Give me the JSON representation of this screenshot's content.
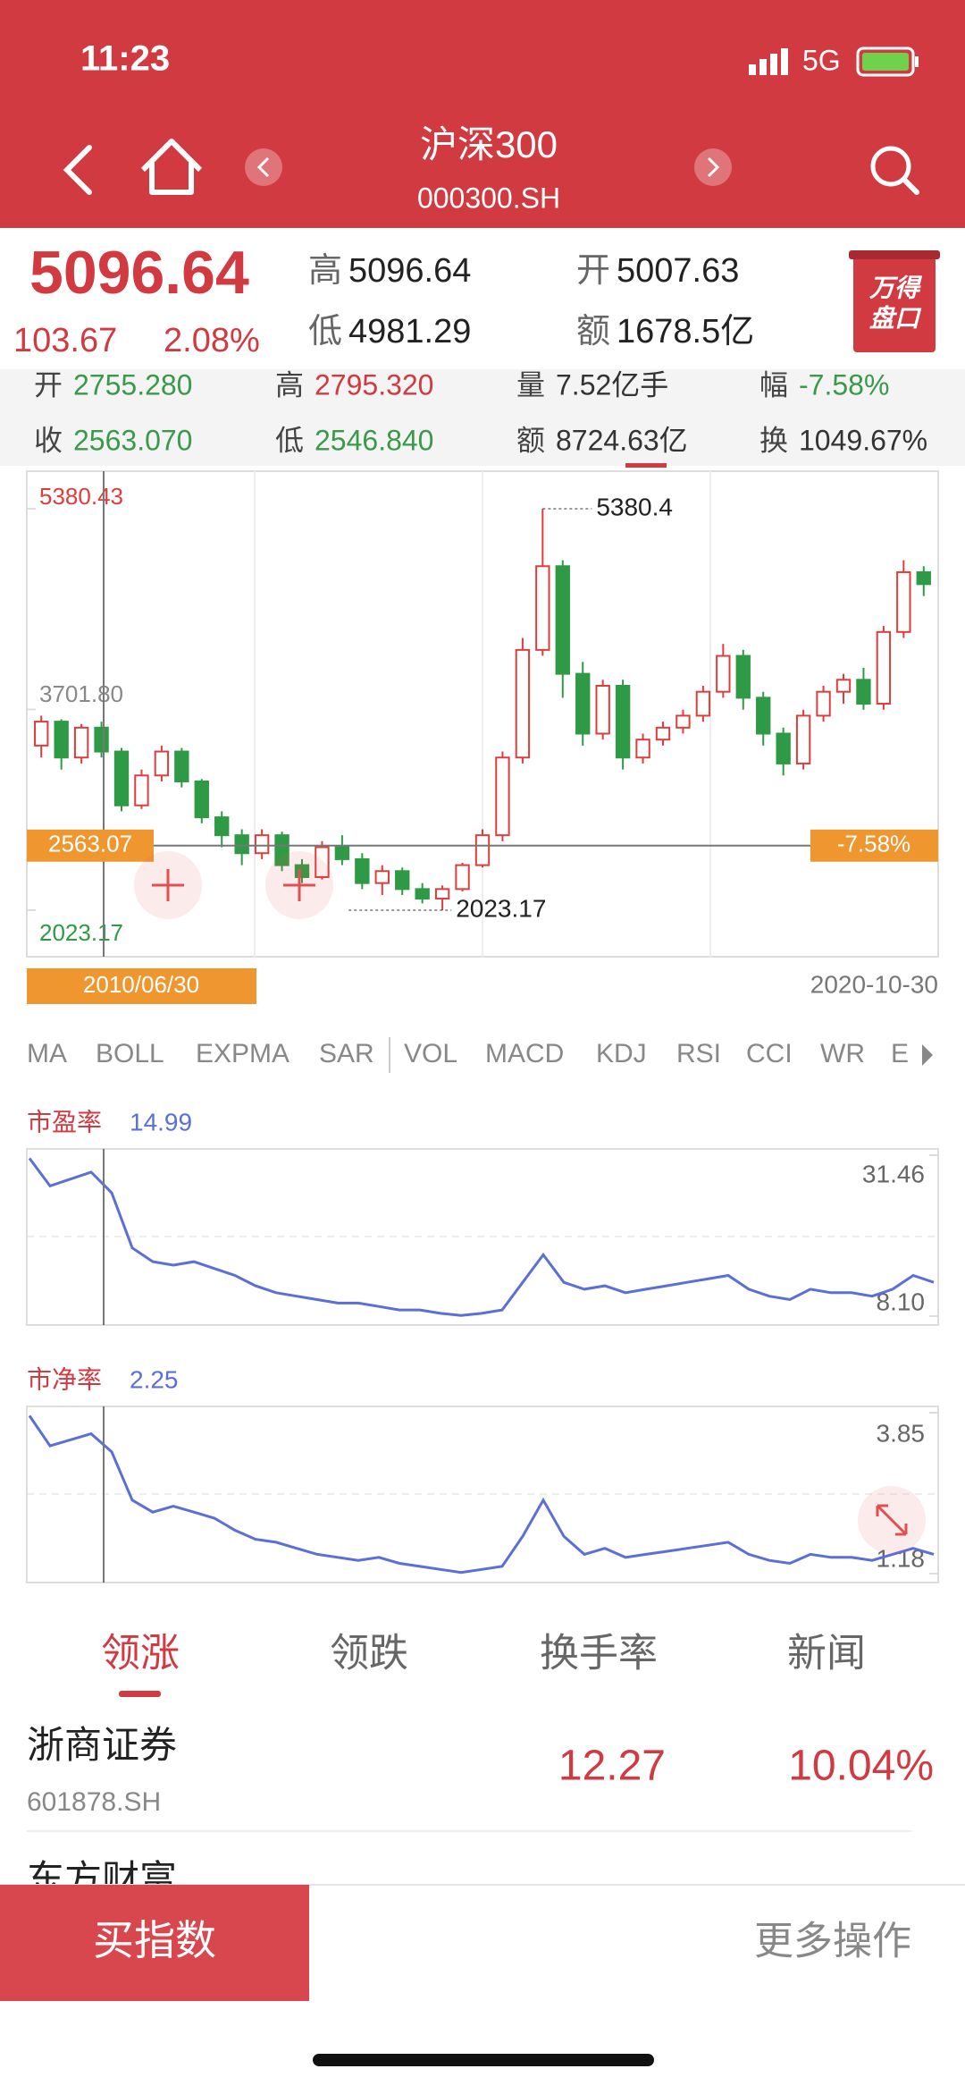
{
  "status": {
    "time": "11:23",
    "network": "5G"
  },
  "header": {
    "title": "沪深300",
    "code": "000300.SH"
  },
  "quote": {
    "price": "5096.64",
    "change": "103.67",
    "change_pct": "2.08%",
    "high_label": "高",
    "high": "5096.64",
    "low_label": "低",
    "low": "4981.29",
    "open_label": "开",
    "open": "5007.63",
    "amount_label": "额",
    "amount": "1678.5亿",
    "logo": [
      "万得",
      "盘口"
    ]
  },
  "detail": [
    [
      {
        "label": "开",
        "value": "2755.280"
      },
      {
        "label": "高",
        "value": "2795.320"
      },
      {
        "label": "量",
        "value": "7.52亿手"
      },
      {
        "label": "幅",
        "value": "-7.58%"
      }
    ],
    [
      {
        "label": "收",
        "value": "2563.070"
      },
      {
        "label": "低",
        "value": "2546.840"
      },
      {
        "label": "额",
        "value": "8724.63亿"
      },
      {
        "label": "换",
        "value": "1049.67%"
      }
    ]
  ],
  "chart_data": [
    {
      "type": "candlestick",
      "open": [
        3400,
        3600,
        3300,
        3550,
        3350,
        2900,
        3150,
        3350,
        3100,
        2800,
        2650,
        2500,
        2650,
        2400,
        2300,
        2550,
        2450,
        2250,
        2350,
        2200,
        2120,
        2200,
        2400,
        2650,
        3300,
        4200,
        4900,
        4000,
        3500,
        3900,
        3300,
        3450,
        3550,
        3650,
        3850,
        4150,
        3800,
        3500,
        3250,
        3650,
        3850,
        3950,
        3750,
        4350,
        4850
      ],
      "close": [
        3600,
        3300,
        3550,
        3350,
        2900,
        3150,
        3350,
        3100,
        2800,
        2650,
        2500,
        2650,
        2400,
        2300,
        2550,
        2450,
        2250,
        2350,
        2200,
        2120,
        2200,
        2400,
        2650,
        3300,
        4200,
        4900,
        4000,
        3500,
        3900,
        3300,
        3450,
        3550,
        3650,
        3850,
        4150,
        3800,
        3500,
        3250,
        3650,
        3850,
        3950,
        3750,
        4350,
        4850,
        4750
      ],
      "high": [
        3650,
        3620,
        3580,
        3600,
        3380,
        3200,
        3400,
        3380,
        3120,
        2850,
        2700,
        2700,
        2680,
        2450,
        2600,
        2650,
        2500,
        2400,
        2380,
        2250,
        2230,
        2420,
        2700,
        3350,
        4300,
        5380.43,
        4950,
        4100,
        3950,
        3950,
        3500,
        3600,
        3700,
        3900,
        4250,
        4200,
        3850,
        3550,
        3700,
        3900,
        4000,
        4050,
        4400,
        4950,
        4900
      ],
      "low": [
        3300,
        3200,
        3250,
        3300,
        2850,
        2870,
        3100,
        3050,
        2750,
        2550,
        2400,
        2450,
        2350,
        2250,
        2280,
        2400,
        2200,
        2150,
        2150,
        2080,
        2023.17,
        2180,
        2380,
        2600,
        3250,
        4150,
        3800,
        3400,
        3450,
        3200,
        3250,
        3400,
        3500,
        3600,
        3800,
        3700,
        3400,
        3150,
        3200,
        3600,
        3750,
        3700,
        3700,
        4300,
        4650
      ],
      "ylim": [
        2023.17,
        5380.43
      ],
      "yticks": [
        5380.43,
        {
          "value": 3701.8,
          "label": "3701.80"
        },
        2023.17
      ],
      "max_label": 5380.4,
      "min_label": 2023.17,
      "crosshair_value": 2563.07,
      "crosshair_change": "-7.58%",
      "crosshair_date": "2010/06/30",
      "end_date": "2020-10-30",
      "up_color": "#e03c3c",
      "down_color": "#2f9a45"
    },
    {
      "type": "line",
      "title": "市盈率",
      "current": 14.99,
      "color": "#5b6fd6",
      "values": [
        31,
        27,
        28,
        29,
        26,
        18,
        16,
        15.5,
        16,
        15,
        14,
        12.5,
        11.5,
        11,
        10.5,
        10,
        10,
        9.5,
        9,
        9,
        8.5,
        8.2,
        8.5,
        9,
        13,
        17,
        13,
        12,
        12.5,
        11.5,
        12,
        12.5,
        13,
        13.5,
        14,
        12,
        11,
        10.5,
        12,
        11.5,
        11.5,
        11,
        12,
        14,
        13
      ],
      "ylim": [
        8.1,
        31.46
      ],
      "yticks": [
        31.46,
        {
          "value": 8.1,
          "label": "8.10"
        }
      ]
    },
    {
      "type": "line",
      "title": "市净率",
      "current": 2.25,
      "color": "#5b6fd6",
      "values": [
        3.8,
        3.3,
        3.4,
        3.5,
        3.2,
        2.4,
        2.2,
        2.3,
        2.2,
        2.1,
        1.9,
        1.75,
        1.7,
        1.6,
        1.5,
        1.45,
        1.4,
        1.45,
        1.35,
        1.3,
        1.25,
        1.2,
        1.25,
        1.3,
        1.8,
        2.4,
        1.8,
        1.5,
        1.6,
        1.45,
        1.5,
        1.55,
        1.6,
        1.65,
        1.7,
        1.5,
        1.4,
        1.35,
        1.5,
        1.45,
        1.45,
        1.4,
        1.5,
        1.6,
        1.5
      ],
      "ylim": [
        1.18,
        3.85
      ],
      "yticks": [
        3.85,
        1.18
      ]
    }
  ],
  "indicators": [
    "MA",
    "BOLL",
    "EXPMA",
    "SAR",
    "VOL",
    "MACD",
    "KDJ",
    "RSI",
    "CCI",
    "WR",
    "E"
  ],
  "tabs": [
    "领涨",
    "领跌",
    "换手率",
    "新闻"
  ],
  "list": [
    {
      "name": "浙商证券",
      "code": "601878.SH",
      "price": "12.27",
      "change": "10.04%"
    },
    {
      "name": "东方财富"
    }
  ],
  "bottom": {
    "buy": "买指数",
    "more": "更多操作"
  }
}
